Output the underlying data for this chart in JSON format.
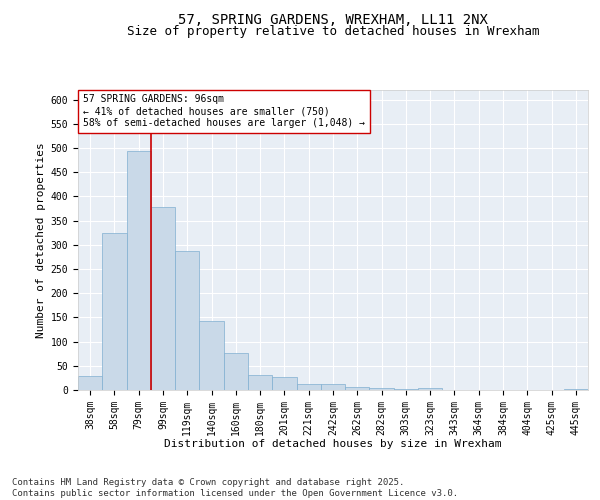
{
  "title": "57, SPRING GARDENS, WREXHAM, LL11 2NX",
  "subtitle": "Size of property relative to detached houses in Wrexham",
  "xlabel": "Distribution of detached houses by size in Wrexham",
  "ylabel": "Number of detached properties",
  "footer": "Contains HM Land Registry data © Crown copyright and database right 2025.\nContains public sector information licensed under the Open Government Licence v3.0.",
  "categories": [
    "38sqm",
    "58sqm",
    "79sqm",
    "99sqm",
    "119sqm",
    "140sqm",
    "160sqm",
    "180sqm",
    "201sqm",
    "221sqm",
    "242sqm",
    "262sqm",
    "282sqm",
    "303sqm",
    "323sqm",
    "343sqm",
    "364sqm",
    "384sqm",
    "404sqm",
    "425sqm",
    "445sqm"
  ],
  "values": [
    28,
    325,
    493,
    378,
    288,
    142,
    77,
    30,
    26,
    13,
    13,
    6,
    5,
    2,
    4,
    1,
    1,
    1,
    1,
    0,
    3
  ],
  "bar_color": "#c9d9e8",
  "bar_edge_color": "#7fafd1",
  "vline_x": 2.5,
  "vline_color": "#cc0000",
  "annotation_text": "57 SPRING GARDENS: 96sqm\n← 41% of detached houses are smaller (750)\n58% of semi-detached houses are larger (1,048) →",
  "annotation_box_color": "#ffffff",
  "annotation_box_edge": "#cc0000",
  "ylim": [
    0,
    620
  ],
  "yticks": [
    0,
    50,
    100,
    150,
    200,
    250,
    300,
    350,
    400,
    450,
    500,
    550,
    600
  ],
  "background_color": "#ffffff",
  "plot_bg_color": "#e8eef5",
  "grid_color": "#ffffff",
  "title_fontsize": 10,
  "subtitle_fontsize": 9,
  "axis_label_fontsize": 8,
  "tick_fontsize": 7,
  "annotation_fontsize": 7,
  "footer_fontsize": 6.5
}
